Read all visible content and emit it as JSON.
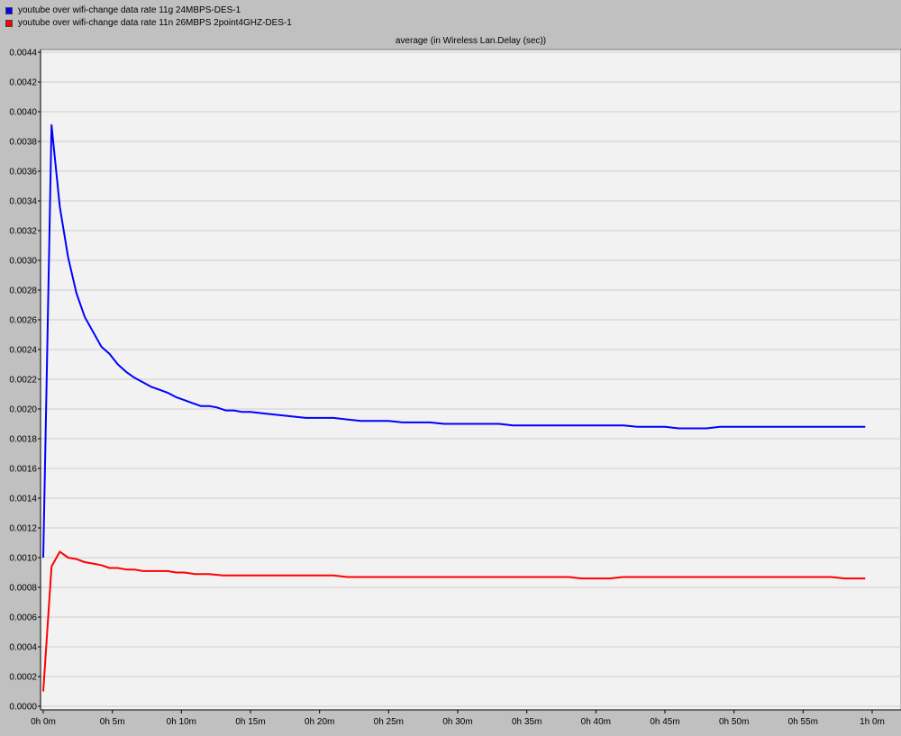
{
  "legend": [
    {
      "label": "youtube over wifi-change data rate 11g 24MBPS-DES-1",
      "color": "#0000ff"
    },
    {
      "label": "youtube over wifi-change data rate 11n 26MBPS 2point4GHZ-DES-1",
      "color": "#ff0000"
    }
  ],
  "chart_data": {
    "type": "line",
    "title": "average (in Wireless Lan.Delay (sec))",
    "xlabel": "",
    "ylabel": "",
    "x_unit": "minutes",
    "xlim": [
      0,
      60
    ],
    "ylim": [
      0,
      0.0044
    ],
    "grid": true,
    "legend_position": "top-left",
    "x_ticks": [
      {
        "value": 0,
        "label": "0h 0m"
      },
      {
        "value": 5,
        "label": "0h 5m"
      },
      {
        "value": 10,
        "label": "0h 10m"
      },
      {
        "value": 15,
        "label": "0h 15m"
      },
      {
        "value": 20,
        "label": "0h 20m"
      },
      {
        "value": 25,
        "label": "0h 25m"
      },
      {
        "value": 30,
        "label": "0h 30m"
      },
      {
        "value": 35,
        "label": "0h 35m"
      },
      {
        "value": 40,
        "label": "0h 40m"
      },
      {
        "value": 45,
        "label": "0h 45m"
      },
      {
        "value": 50,
        "label": "0h 50m"
      },
      {
        "value": 55,
        "label": "0h 55m"
      },
      {
        "value": 60,
        "label": "1h 0m"
      }
    ],
    "y_ticks": [
      {
        "value": 0,
        "label": "0.0000"
      },
      {
        "value": 0.0002,
        "label": "0.0002"
      },
      {
        "value": 0.0004,
        "label": "0.0004"
      },
      {
        "value": 0.0006,
        "label": "0.0006"
      },
      {
        "value": 0.0008,
        "label": "0.0008"
      },
      {
        "value": 0.001,
        "label": "0.0010"
      },
      {
        "value": 0.0012,
        "label": "0.0012"
      },
      {
        "value": 0.0014,
        "label": "0.0014"
      },
      {
        "value": 0.0016,
        "label": "0.0016"
      },
      {
        "value": 0.0018,
        "label": "0.0018"
      },
      {
        "value": 0.002,
        "label": "0.0020"
      },
      {
        "value": 0.0022,
        "label": "0.0022"
      },
      {
        "value": 0.0024,
        "label": "0.0024"
      },
      {
        "value": 0.0026,
        "label": "0.0026"
      },
      {
        "value": 0.0028,
        "label": "0.0028"
      },
      {
        "value": 0.003,
        "label": "0.0030"
      },
      {
        "value": 0.0032,
        "label": "0.0032"
      },
      {
        "value": 0.0034,
        "label": "0.0034"
      },
      {
        "value": 0.0036,
        "label": "0.0036"
      },
      {
        "value": 0.0038,
        "label": "0.0038"
      },
      {
        "value": 0.004,
        "label": "0.0040"
      },
      {
        "value": 0.0042,
        "label": "0.0042"
      },
      {
        "value": 0.0044,
        "label": "0.0044"
      }
    ],
    "series": [
      {
        "name": "youtube over wifi-change data rate 11g 24MBPS-DES-1",
        "color": "#0000ff",
        "points": [
          [
            0,
            0.001
          ],
          [
            0.6,
            0.00391
          ],
          [
            1.2,
            0.00336
          ],
          [
            1.8,
            0.00302
          ],
          [
            2.4,
            0.00278
          ],
          [
            3.0,
            0.00262
          ],
          [
            3.6,
            0.00252
          ],
          [
            4.2,
            0.00242
          ],
          [
            4.8,
            0.00237
          ],
          [
            5.4,
            0.0023
          ],
          [
            6.0,
            0.00225
          ],
          [
            6.6,
            0.00221
          ],
          [
            7.2,
            0.00218
          ],
          [
            7.8,
            0.00215
          ],
          [
            8.4,
            0.00213
          ],
          [
            9.0,
            0.00211
          ],
          [
            9.6,
            0.00208
          ],
          [
            10.2,
            0.00206
          ],
          [
            10.8,
            0.00204
          ],
          [
            11.4,
            0.00202
          ],
          [
            12.0,
            0.00202
          ],
          [
            12.6,
            0.00201
          ],
          [
            13.2,
            0.00199
          ],
          [
            13.8,
            0.00199
          ],
          [
            14.4,
            0.00198
          ],
          [
            15.0,
            0.00198
          ],
          [
            16.0,
            0.00197
          ],
          [
            17.0,
            0.00196
          ],
          [
            18.0,
            0.00195
          ],
          [
            19.0,
            0.00194
          ],
          [
            20.0,
            0.00194
          ],
          [
            21.0,
            0.00194
          ],
          [
            22.0,
            0.00193
          ],
          [
            23.0,
            0.00192
          ],
          [
            24.0,
            0.00192
          ],
          [
            25.0,
            0.00192
          ],
          [
            26.0,
            0.00191
          ],
          [
            27.0,
            0.00191
          ],
          [
            28.0,
            0.00191
          ],
          [
            29.0,
            0.0019
          ],
          [
            30.0,
            0.0019
          ],
          [
            31.0,
            0.0019
          ],
          [
            32.0,
            0.0019
          ],
          [
            33.0,
            0.0019
          ],
          [
            34.0,
            0.00189
          ],
          [
            35.0,
            0.00189
          ],
          [
            36.0,
            0.00189
          ],
          [
            37.0,
            0.00189
          ],
          [
            38.0,
            0.00189
          ],
          [
            39.0,
            0.00189
          ],
          [
            40.0,
            0.00189
          ],
          [
            41.0,
            0.00189
          ],
          [
            42.0,
            0.00189
          ],
          [
            43.0,
            0.00188
          ],
          [
            44.0,
            0.00188
          ],
          [
            45.0,
            0.00188
          ],
          [
            46.0,
            0.00187
          ],
          [
            47.0,
            0.00187
          ],
          [
            48.0,
            0.00187
          ],
          [
            49.0,
            0.00188
          ],
          [
            50.0,
            0.00188
          ],
          [
            51.0,
            0.00188
          ],
          [
            52.0,
            0.00188
          ],
          [
            53.0,
            0.00188
          ],
          [
            54.0,
            0.00188
          ],
          [
            55.0,
            0.00188
          ],
          [
            56.0,
            0.00188
          ],
          [
            57.0,
            0.00188
          ],
          [
            58.0,
            0.00188
          ],
          [
            59.5,
            0.00188
          ]
        ]
      },
      {
        "name": "youtube over wifi-change data rate 11n 26MBPS 2point4GHZ-DES-1",
        "color": "#ff0000",
        "points": [
          [
            0,
            0.0001
          ],
          [
            0.6,
            0.00094
          ],
          [
            1.2,
            0.00104
          ],
          [
            1.8,
            0.001
          ],
          [
            2.4,
            0.00099
          ],
          [
            3.0,
            0.00097
          ],
          [
            3.6,
            0.00096
          ],
          [
            4.2,
            0.00095
          ],
          [
            4.8,
            0.00093
          ],
          [
            5.4,
            0.00093
          ],
          [
            6.0,
            0.00092
          ],
          [
            6.6,
            0.00092
          ],
          [
            7.2,
            0.00091
          ],
          [
            7.8,
            0.00091
          ],
          [
            8.4,
            0.00091
          ],
          [
            9.0,
            0.00091
          ],
          [
            9.6,
            0.0009
          ],
          [
            10.2,
            0.0009
          ],
          [
            11.0,
            0.00089
          ],
          [
            12.0,
            0.00089
          ],
          [
            13.0,
            0.00088
          ],
          [
            14.0,
            0.00088
          ],
          [
            15.0,
            0.00088
          ],
          [
            16.0,
            0.00088
          ],
          [
            17.0,
            0.00088
          ],
          [
            18.0,
            0.00088
          ],
          [
            19.0,
            0.00088
          ],
          [
            20.0,
            0.00088
          ],
          [
            21.0,
            0.00088
          ],
          [
            22.0,
            0.00087
          ],
          [
            23.0,
            0.00087
          ],
          [
            24.0,
            0.00087
          ],
          [
            25.0,
            0.00087
          ],
          [
            26.0,
            0.00087
          ],
          [
            27.0,
            0.00087
          ],
          [
            28.0,
            0.00087
          ],
          [
            29.0,
            0.00087
          ],
          [
            30.0,
            0.00087
          ],
          [
            31.0,
            0.00087
          ],
          [
            32.0,
            0.00087
          ],
          [
            33.0,
            0.00087
          ],
          [
            34.0,
            0.00087
          ],
          [
            35.0,
            0.00087
          ],
          [
            36.0,
            0.00087
          ],
          [
            37.0,
            0.00087
          ],
          [
            38.0,
            0.00087
          ],
          [
            39.0,
            0.00086
          ],
          [
            40.0,
            0.00086
          ],
          [
            41.0,
            0.00086
          ],
          [
            42.0,
            0.00087
          ],
          [
            43.0,
            0.00087
          ],
          [
            44.0,
            0.00087
          ],
          [
            45.0,
            0.00087
          ],
          [
            46.0,
            0.00087
          ],
          [
            47.0,
            0.00087
          ],
          [
            48.0,
            0.00087
          ],
          [
            49.0,
            0.00087
          ],
          [
            50.0,
            0.00087
          ],
          [
            51.0,
            0.00087
          ],
          [
            52.0,
            0.00087
          ],
          [
            53.0,
            0.00087
          ],
          [
            54.0,
            0.00087
          ],
          [
            55.0,
            0.00087
          ],
          [
            56.0,
            0.00087
          ],
          [
            57.0,
            0.00087
          ],
          [
            58.0,
            0.00086
          ],
          [
            59.5,
            0.00086
          ]
        ]
      }
    ]
  }
}
